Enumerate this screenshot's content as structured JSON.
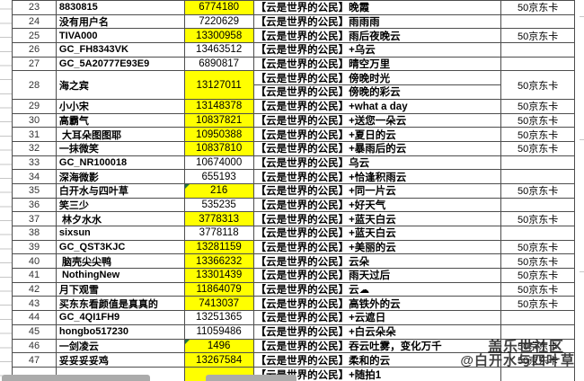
{
  "watermark": {
    "community": "盖乐世社区",
    "author": "@白开水与四叶草"
  },
  "colors": {
    "highlight_yellow": "#ffff00",
    "flag_green": "#1f7246",
    "border_gray": "#4d4d4d"
  },
  "table": {
    "rows": [
      {
        "no": "23",
        "user": "8830815",
        "num": "6774180",
        "highlight": true,
        "title": "【云是世界的公民】晚霞",
        "prize": "50京东卡"
      },
      {
        "no": "24",
        "user": "没有用户名",
        "num": "7220629",
        "highlight": false,
        "title": "【云是世界的公民】雨雨雨",
        "prize": ""
      },
      {
        "no": "25",
        "user": "TIVA000",
        "num": "13300958",
        "highlight": true,
        "title": "【云是世界的公民】雨后夜晚云",
        "prize": "50京东卡"
      },
      {
        "no": "26",
        "user": "GC_FH8343VK",
        "num": "13463512",
        "highlight": false,
        "title": "【云是世界的公民】+乌云",
        "prize": ""
      },
      {
        "no": "27",
        "user": "GC_5A20777E93E9",
        "num": "6890817",
        "highlight": false,
        "title": "【云是世界的公民】晴空万里",
        "prize": ""
      },
      {
        "no": "28",
        "user": "海之宾",
        "num": "13127011",
        "highlight": true,
        "double": true,
        "titles": [
          "【云是世界的公民】傍晚时光",
          "【云是世界的公民】傍晚的彩云"
        ],
        "prize": "50京东卡"
      },
      {
        "no": "29",
        "user": "小小宋",
        "num": "13148378",
        "highlight": true,
        "title": "【云是世界的公民】+what a day",
        "prize": "50京东卡"
      },
      {
        "no": "30",
        "user": "高霸气",
        "num": "10837821",
        "highlight": true,
        "title": "【云是世界的公民】+送您一朵云",
        "prize": "50京东卡"
      },
      {
        "no": "31",
        "user": " 大耳朵图图耶",
        "num": "10950388",
        "highlight": true,
        "title": "【云是世界的公民】+夏日的云",
        "prize": "50京东卡"
      },
      {
        "no": "32",
        "user": "一抹微笑",
        "num": "10837810",
        "highlight": true,
        "title": "【云是世界的公民】+暴雨后的云",
        "prize": "50京东卡"
      },
      {
        "no": "33",
        "user": "GC_NR100018",
        "num": "10674000",
        "highlight": false,
        "title": "【云是世界的公民】乌云",
        "prize": ""
      },
      {
        "no": "34",
        "user": "深海微影",
        "num": "655193",
        "highlight": false,
        "title": "【云是世界的公民】+恰逢积雨云",
        "prize": ""
      },
      {
        "no": "35",
        "user": "白开水与四叶草",
        "num": "216",
        "highlight": true,
        "flag": true,
        "title": "【云是世界的公民】+同一片云",
        "prize": "50京东卡"
      },
      {
        "no": "36",
        "user": "笑三少",
        "num": "535235",
        "highlight": false,
        "title": "【云是世界的公民】+好天气",
        "prize": ""
      },
      {
        "no": "37",
        "user": " 林夕水水",
        "num": "3778313",
        "highlight": true,
        "title": "【云是世界的公民】+蓝天白云",
        "prize": "50京东卡"
      },
      {
        "no": "38",
        "user": "sixsun",
        "num": "3778118",
        "highlight": false,
        "title": "【云是世界的公民】+蓝天白云",
        "prize": ""
      },
      {
        "no": "39",
        "user": "GC_QST3KJC",
        "num": "13281159",
        "highlight": true,
        "title": "【云是世界的公民】+美丽的云",
        "prize": "50京东卡"
      },
      {
        "no": "40",
        "user": " 脑壳尖尖鸭",
        "num": "13366232",
        "highlight": true,
        "title": "【云是世界的公民】云朵",
        "prize": "50京东卡"
      },
      {
        "no": "41",
        "user": " NothingNew",
        "num": "13301439",
        "highlight": true,
        "title": "【云是世界的公民】雨天过后",
        "prize": "50京东卡"
      },
      {
        "no": "42",
        "user": "月下观雪",
        "num": "11864079",
        "highlight": true,
        "title": "【云是世界的公民】云☁",
        "prize": "50京东卡"
      },
      {
        "no": "43",
        "user": "买东东看颜值是真真的",
        "num": "7413037",
        "highlight": true,
        "title": "【云是世界的公民】高铁外的云",
        "prize": "50京东卡"
      },
      {
        "no": "44",
        "user": "GC_4QI1FH9",
        "num": "13251365",
        "highlight": false,
        "title": "【云是世界的公民】+云遮日",
        "prize": ""
      },
      {
        "no": "45",
        "user": "hongbo517230",
        "num": "11059486",
        "highlight": false,
        "title": "【云是世界的公民】+白云朵朵",
        "prize": ""
      },
      {
        "no": "46",
        "user": "一剑凌云",
        "num": "1496",
        "highlight": true,
        "flag": true,
        "title": "【云是世界的公民】吞云吐雾，变化万千",
        "prize": "50京东卡"
      },
      {
        "no": "47",
        "user": "妥妥妥妥鸡",
        "num": "13267584",
        "highlight": true,
        "title": "【云是世界的公民】柔和的云",
        "prize": "50京东卡"
      },
      {
        "no": "",
        "user": "",
        "num": "",
        "highlight": true,
        "partial": true,
        "title": "【云是世界的公民】+随拍1",
        "prize": ""
      }
    ]
  }
}
